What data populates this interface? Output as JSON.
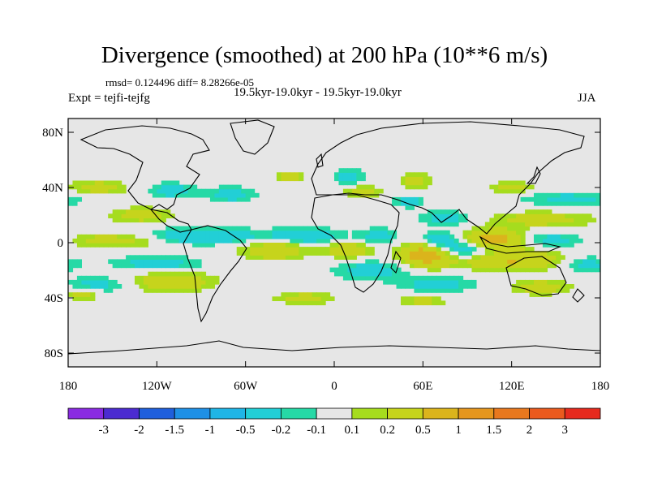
{
  "header": {
    "title": "Divergence (smoothed) at 200 hPa (10**6 m/s)",
    "stats": "rmsd= 0.124496 diff= 8.28266e-05",
    "period": "19.5kyr-19.0kyr - 19.5kyr-19.0kyr",
    "experiment": "Expt = tejfi-tejfg",
    "season": "JJA"
  },
  "chart_data": {
    "type": "heatmap",
    "title": "Divergence (smoothed) at 200 hPa (10**6 m/s)",
    "projection": "cylindrical equidistant",
    "xlim": [
      -180,
      180
    ],
    "ylim": [
      -90,
      90
    ],
    "x_ticks": [
      -180,
      -120,
      -60,
      0,
      60,
      120,
      180
    ],
    "x_tick_labels": [
      "180",
      "120W",
      "60W",
      "0",
      "60E",
      "120E",
      "180"
    ],
    "y_ticks": [
      80,
      40,
      0,
      -40,
      -80
    ],
    "y_tick_labels": [
      "80N",
      "40N",
      "0",
      "40S",
      "80S"
    ],
    "colorbar": {
      "colors": [
        "#8a2be2",
        "#4b2bd0",
        "#1f5fdc",
        "#1e90e6",
        "#1fb5e6",
        "#22cfd6",
        "#26d9a6",
        "#e6e6e6",
        "#a6dc1e",
        "#c6d41c",
        "#dbb41c",
        "#e5961e",
        "#e8781e",
        "#ea5a1e",
        "#e62a1e"
      ],
      "levels": [
        "-3",
        "-2",
        "-1.5",
        "-1",
        "-0.5",
        "-0.2",
        "-0.1",
        "0.1",
        "0.2",
        "0.5",
        "1",
        "1.5",
        "2",
        "3"
      ]
    },
    "anomalies": [
      {
        "lon": 160,
        "lat": 32,
        "sx": 26,
        "sy": 4,
        "v": -0.25
      },
      {
        "lon": 140,
        "lat": 17,
        "sx": 25,
        "sy": 4,
        "v": 0.3
      },
      {
        "lon": 148,
        "lat": 2,
        "sx": 22,
        "sy": 4,
        "v": -0.3
      },
      {
        "lon": 118,
        "lat": -12,
        "sx": 25,
        "sy": 5,
        "v": 0.55
      },
      {
        "lon": 108,
        "lat": 2,
        "sx": 14,
        "sy": 5,
        "v": 0.8
      },
      {
        "lon": 90,
        "lat": -5,
        "sx": 17,
        "sy": 5,
        "v": -0.5
      },
      {
        "lon": 75,
        "lat": 18,
        "sx": 12,
        "sy": 4,
        "v": -0.3
      },
      {
        "lon": 62,
        "lat": -8,
        "sx": 12,
        "sy": 6,
        "v": 0.8
      },
      {
        "lon": 70,
        "lat": 2,
        "sx": 10,
        "sy": 4,
        "v": -0.4
      },
      {
        "lon": 30,
        "lat": 5,
        "sx": 9,
        "sy": 4,
        "v": -0.3
      },
      {
        "lon": 10,
        "lat": -5,
        "sx": 11,
        "sy": 4,
        "v": 0.4
      },
      {
        "lon": 25,
        "lat": -20,
        "sx": 18,
        "sy": 5,
        "v": -0.3
      },
      {
        "lon": -20,
        "lat": 5,
        "sx": 18,
        "sy": 4,
        "v": -0.4
      },
      {
        "lon": -40,
        "lat": -5,
        "sx": 16,
        "sy": 5,
        "v": 0.4
      },
      {
        "lon": -30,
        "lat": 48,
        "sx": 7,
        "sy": 3,
        "v": 0.3
      },
      {
        "lon": 10,
        "lat": 48,
        "sx": 7,
        "sy": 4,
        "v": -0.3
      },
      {
        "lon": 20,
        "lat": 37,
        "sx": 9,
        "sy": 3,
        "v": 0.3
      },
      {
        "lon": 55,
        "lat": 45,
        "sx": 7,
        "sy": 4,
        "v": 0.3
      },
      {
        "lon": -110,
        "lat": 38,
        "sx": 11,
        "sy": 4,
        "v": -0.3
      },
      {
        "lon": -70,
        "lat": 35,
        "sx": 12,
        "sy": 4,
        "v": -0.3
      },
      {
        "lon": -90,
        "lat": 5,
        "sx": 25,
        "sy": 4,
        "v": -0.5
      },
      {
        "lon": -130,
        "lat": 20,
        "sx": 15,
        "sy": 4,
        "v": 0.3
      },
      {
        "lon": -150,
        "lat": 2,
        "sx": 28,
        "sy": 4,
        "v": 0.3
      },
      {
        "lon": -160,
        "lat": 40,
        "sx": 14,
        "sy": 4,
        "v": 0.3
      },
      {
        "lon": -120,
        "lat": -15,
        "sx": 22,
        "sy": 4,
        "v": -0.3
      },
      {
        "lon": -110,
        "lat": -28,
        "sx": 20,
        "sy": 5,
        "v": 0.4
      },
      {
        "lon": -160,
        "lat": -30,
        "sx": 15,
        "sy": 4,
        "v": -0.3
      },
      {
        "lon": -170,
        "lat": -37,
        "sx": 8,
        "sy": 3,
        "v": 0.3
      },
      {
        "lon": 70,
        "lat": -30,
        "sx": 18,
        "sy": 4,
        "v": -0.3
      },
      {
        "lon": 140,
        "lat": -32,
        "sx": 15,
        "sy": 4,
        "v": 0.3
      },
      {
        "lon": 170,
        "lat": -15,
        "sx": 12,
        "sy": 4,
        "v": -0.3
      },
      {
        "lon": 120,
        "lat": 40,
        "sx": 10,
        "sy": 3,
        "v": 0.3
      },
      {
        "lon": 50,
        "lat": 30,
        "sx": 8,
        "sy": 3,
        "v": -0.3
      },
      {
        "lon": -20,
        "lat": -40,
        "sx": 14,
        "sy": 3,
        "v": 0.3
      },
      {
        "lon": 60,
        "lat": -42,
        "sx": 10,
        "sy": 3,
        "v": 0.3
      }
    ]
  }
}
